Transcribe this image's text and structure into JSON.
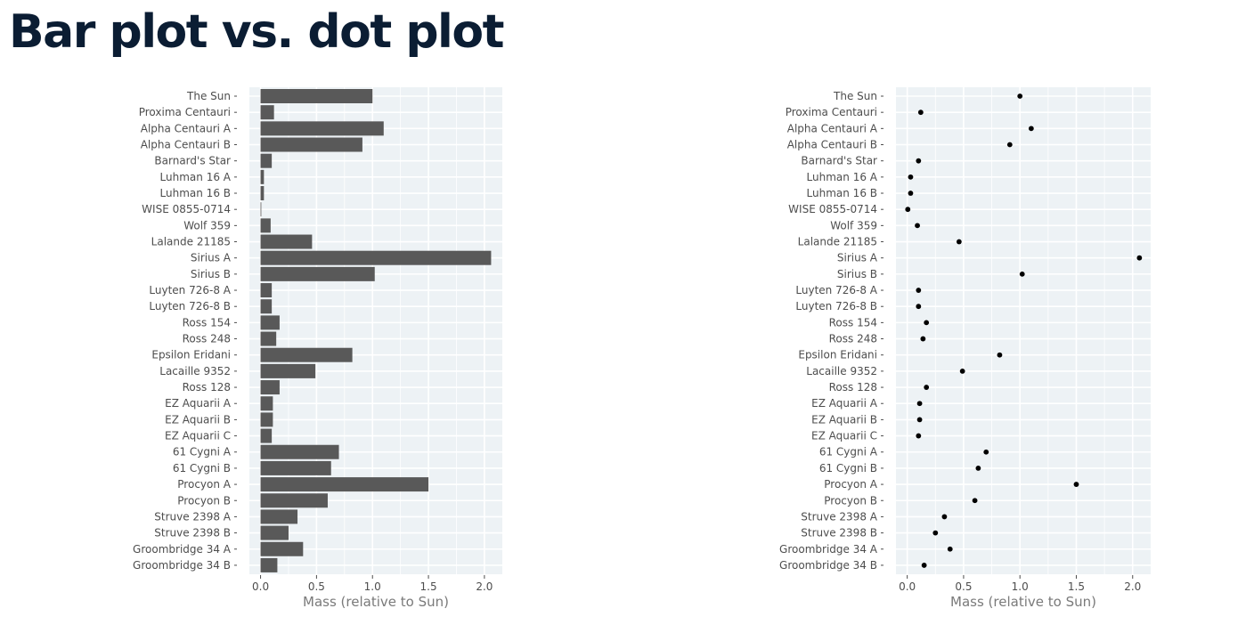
{
  "slide": {
    "title": "Bar plot vs. dot plot"
  },
  "chart_data": [
    {
      "type": "bar",
      "orientation": "horizontal",
      "categories": [
        "The Sun",
        "Proxima Centauri",
        "Alpha Centauri A",
        "Alpha Centauri B",
        "Barnard's Star",
        "Luhman 16 A",
        "Luhman 16 B",
        "WISE 0855-0714",
        "Wolf 359",
        "Lalande 21185",
        "Sirius A",
        "Sirius B",
        "Luyten 726-8 A",
        "Luyten 726-8 B",
        "Ross 154",
        "Ross 248",
        "Epsilon Eridani",
        "Lacaille 9352",
        "Ross 128",
        "EZ Aquarii A",
        "EZ Aquarii B",
        "EZ Aquarii C",
        "61 Cygni A",
        "61 Cygni B",
        "Procyon A",
        "Procyon B",
        "Struve 2398 A",
        "Struve 2398 B",
        "Groombridge 34 A",
        "Groombridge 34 B"
      ],
      "values": [
        1.0,
        0.12,
        1.1,
        0.91,
        0.1,
        0.03,
        0.03,
        0.005,
        0.09,
        0.46,
        2.06,
        1.02,
        0.1,
        0.1,
        0.17,
        0.14,
        0.82,
        0.49,
        0.17,
        0.11,
        0.11,
        0.1,
        0.7,
        0.63,
        1.5,
        0.6,
        0.33,
        0.25,
        0.38,
        0.15
      ],
      "xlabel": "Mass (relative to Sun)",
      "ylabel": "",
      "xlim": [
        -0.1,
        2.16
      ],
      "xticks": [
        "0.0",
        "0.5",
        "1.0",
        "1.5",
        "2.0"
      ],
      "grid": true,
      "panel_color": "#edf2f5",
      "mark_color": "#595959"
    },
    {
      "type": "scatter",
      "style": "dot plot",
      "categories": [
        "The Sun",
        "Proxima Centauri",
        "Alpha Centauri A",
        "Alpha Centauri B",
        "Barnard's Star",
        "Luhman 16 A",
        "Luhman 16 B",
        "WISE 0855-0714",
        "Wolf 359",
        "Lalande 21185",
        "Sirius A",
        "Sirius B",
        "Luyten 726-8 A",
        "Luyten 726-8 B",
        "Ross 154",
        "Ross 248",
        "Epsilon Eridani",
        "Lacaille 9352",
        "Ross 128",
        "EZ Aquarii A",
        "EZ Aquarii B",
        "EZ Aquarii C",
        "61 Cygni A",
        "61 Cygni B",
        "Procyon A",
        "Procyon B",
        "Struve 2398 A",
        "Struve 2398 B",
        "Groombridge 34 A",
        "Groombridge 34 B"
      ],
      "values": [
        1.0,
        0.12,
        1.1,
        0.91,
        0.1,
        0.03,
        0.03,
        0.005,
        0.09,
        0.46,
        2.06,
        1.02,
        0.1,
        0.1,
        0.17,
        0.14,
        0.82,
        0.49,
        0.17,
        0.11,
        0.11,
        0.1,
        0.7,
        0.63,
        1.5,
        0.6,
        0.33,
        0.25,
        0.38,
        0.15
      ],
      "xlabel": "Mass (relative to Sun)",
      "ylabel": "",
      "xlim": [
        -0.1,
        2.16
      ],
      "xticks": [
        "0.0",
        "0.5",
        "1.0",
        "1.5",
        "2.0"
      ],
      "grid": true,
      "panel_color": "#edf2f5",
      "mark_color": "#000000"
    }
  ]
}
